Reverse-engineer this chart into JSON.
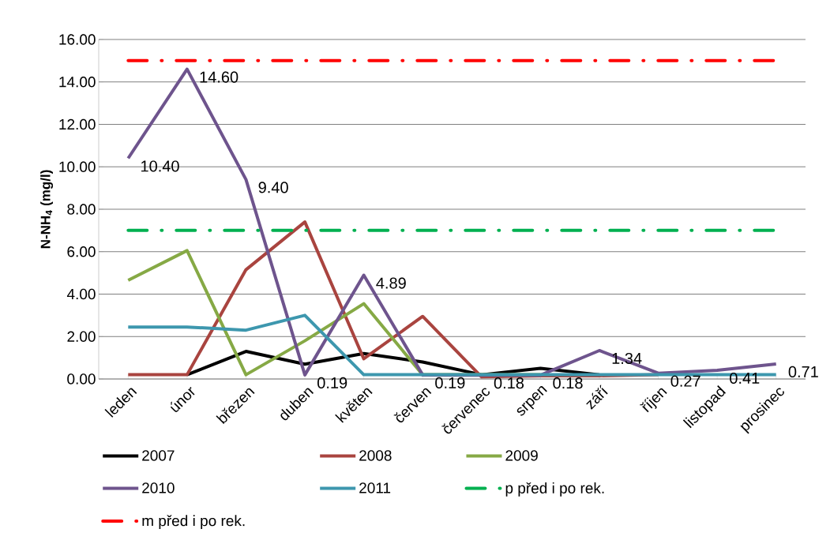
{
  "chart_data": {
    "type": "line",
    "ylabel": "N-NH$_{4}$ (mg/l)",
    "categories": [
      "leden",
      "únor",
      "březen",
      "duben",
      "květen",
      "červen",
      "červenec",
      "srpen",
      "září",
      "říjen",
      "listopad",
      "prosinec"
    ],
    "series": [
      {
        "name": "2007",
        "color": "#000000",
        "values": [
          null,
          0.2,
          1.3,
          0.7,
          1.2,
          0.8,
          0.2,
          0.5,
          0.2,
          null,
          null,
          null
        ]
      },
      {
        "name": "2008",
        "color": "#a9443f",
        "values": [
          0.2,
          0.2,
          5.15,
          7.4,
          0.95,
          2.95,
          0.1,
          0.15,
          0.15,
          0.2,
          null,
          null
        ]
      },
      {
        "name": "2009",
        "color": "#86a945",
        "values": [
          4.65,
          6.05,
          0.2,
          1.8,
          3.55,
          0.2,
          0.2,
          0.2,
          null,
          null,
          null,
          null
        ]
      },
      {
        "name": "2010",
        "color": "#6e548d",
        "values": [
          10.4,
          14.6,
          9.4,
          0.19,
          4.89,
          0.19,
          0.18,
          0.18,
          1.34,
          0.27,
          0.41,
          0.71
        ],
        "value_labels": [
          "10.40",
          "14.60",
          "9.40",
          "0.19",
          "4.89",
          "0.19",
          "0.18",
          "0.18",
          "1.34",
          "0.27",
          "0.41",
          "0.71"
        ]
      },
      {
        "name": "2011",
        "color": "#3d97ae",
        "values": [
          2.45,
          2.45,
          2.3,
          3.0,
          0.2,
          0.2,
          0.2,
          0.2,
          0.2,
          0.2,
          0.2,
          0.2
        ]
      }
    ],
    "ref_lines": [
      {
        "axis": "y",
        "value": 7,
        "label": "p před i po rek.",
        "color": "#00b050",
        "line_style": "dashdot"
      },
      {
        "axis": "y",
        "value": 15,
        "label": "m před i po rek.",
        "color": "#ff0000",
        "line_style": "dashdot"
      }
    ],
    "ylim": [
      0,
      16
    ],
    "yticks": [
      {
        "value": 0,
        "label": "0.00"
      },
      {
        "value": 2,
        "label": "2.00"
      },
      {
        "value": 4,
        "label": "4.00"
      },
      {
        "value": 6,
        "label": "6.00"
      },
      {
        "value": 8,
        "label": "8.00"
      },
      {
        "value": 10,
        "label": "10.00"
      },
      {
        "value": 12,
        "label": "12.00"
      },
      {
        "value": 14,
        "label": "14.00"
      },
      {
        "value": 16,
        "label": "16.00"
      }
    ],
    "grid": "y",
    "legend": "bottom",
    "marker": "none",
    "line_style": "solid"
  }
}
